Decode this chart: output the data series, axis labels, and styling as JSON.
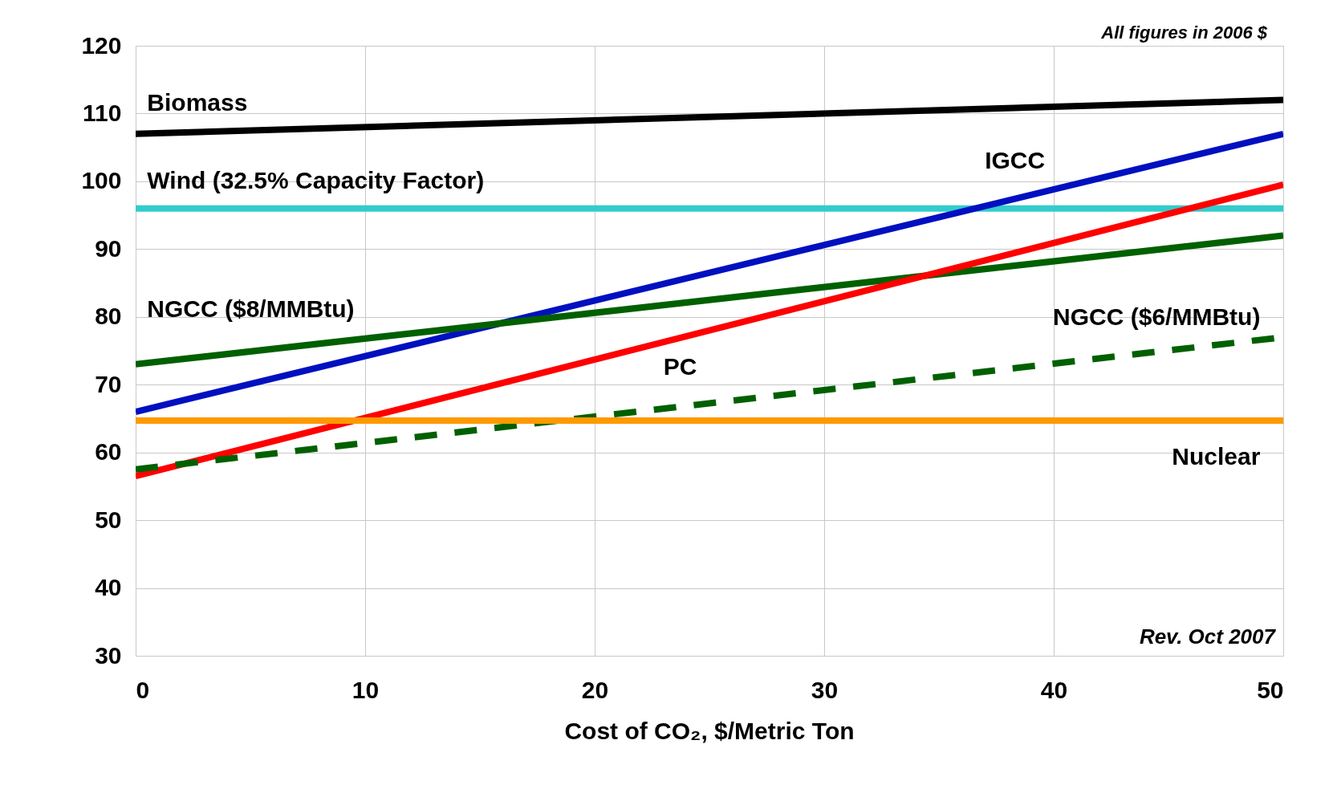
{
  "chart_data": {
    "type": "line",
    "xlabel": "Cost of CO₂, $/Metric Ton",
    "xlim": [
      0,
      50
    ],
    "xticks": [
      0,
      10,
      20,
      30,
      40,
      50
    ],
    "ylim": [
      30,
      120
    ],
    "yticks": [
      30,
      40,
      50,
      60,
      70,
      80,
      90,
      100,
      110,
      120
    ],
    "grid": true,
    "marker": "none",
    "x": [
      0,
      50
    ],
    "series": [
      {
        "name": "Biomass",
        "color": "#000000",
        "values": [
          107,
          112
        ]
      },
      {
        "name": "Wind (32.5% Capacity Factor)",
        "color": "#33cccc",
        "values": [
          96,
          96
        ]
      },
      {
        "name": "IGCC",
        "color": "#0010c0",
        "values": [
          66,
          107
        ]
      },
      {
        "name": "NGCC ($8/MMBtu)",
        "color": "#006000",
        "values": [
          73,
          92
        ]
      },
      {
        "name": "PC",
        "color": "#ff0000",
        "values": [
          56.5,
          99.5
        ]
      },
      {
        "name": "NGCC ($6/MMBtu)",
        "color": "#006000",
        "values": [
          57.5,
          77
        ],
        "line_style": "dashed"
      },
      {
        "name": "Nuclear",
        "color": "#ff9900",
        "values": [
          64.7,
          64.7
        ]
      }
    ],
    "annotations": [
      "All figures in 2006 $",
      "Rev. Oct 2007"
    ]
  }
}
